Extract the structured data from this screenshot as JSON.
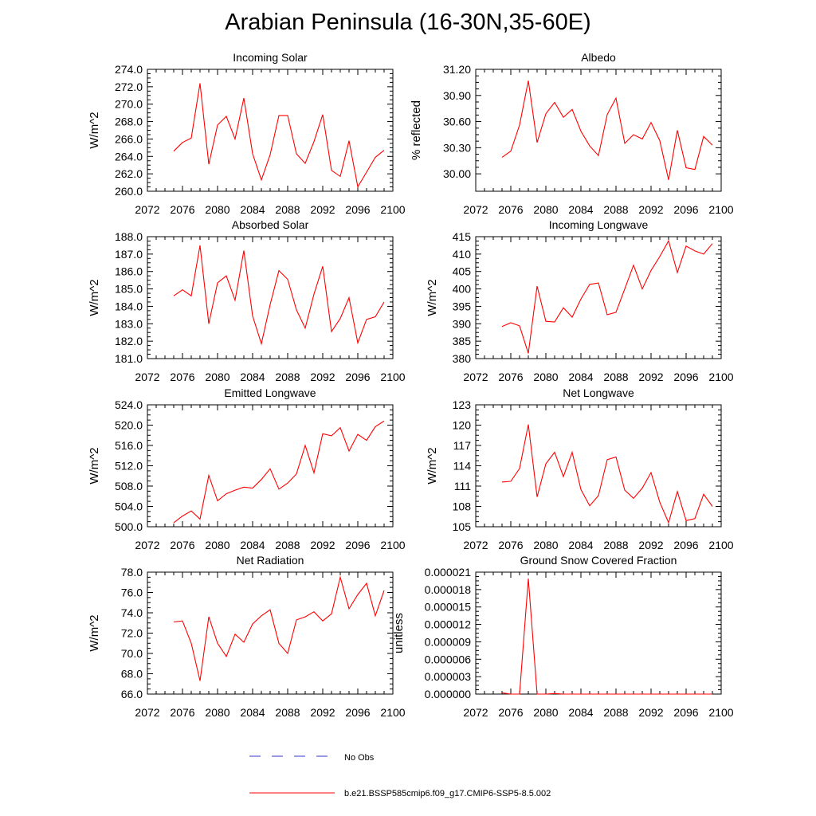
{
  "title": "Arabian Peninsula (16-30N,35-60E)",
  "colors": {
    "model_line": "#ff0000",
    "obs_line": "#3333cc",
    "axes": "#000000"
  },
  "legend": {
    "placement": "bottom-center",
    "obs_label": "No Obs",
    "model_label": "b.e21.BSSP585cmip6.f09_g17.CMIP6-SSP5-8.5.002"
  },
  "chart_data": [
    {
      "type": "line",
      "title": "Incoming Solar",
      "ylabel": "W/m^2",
      "xlim": [
        2072,
        2100
      ],
      "ylim": [
        260,
        274
      ],
      "xticks": [
        "2072",
        "2076",
        "2080",
        "2084",
        "2088",
        "2092",
        "2096",
        "2100"
      ],
      "yticks": [
        "260.0",
        "262.0",
        "264.0",
        "266.0",
        "268.0",
        "270.0",
        "272.0",
        "274.0"
      ],
      "x": [
        2075,
        2076,
        2077,
        2078,
        2079,
        2080,
        2081,
        2082,
        2083,
        2084,
        2085,
        2086,
        2087,
        2088,
        2089,
        2090,
        2091,
        2092,
        2093,
        2094,
        2095,
        2096,
        2097,
        2098,
        2099
      ],
      "series": [
        {
          "values": [
            264.6,
            265.6,
            266.1,
            272.4,
            263.1,
            267.6,
            268.6,
            266.0,
            270.7,
            264.3,
            261.3,
            264.2,
            268.7,
            268.7,
            264.3,
            263.2,
            265.7,
            268.8,
            262.4,
            261.7,
            265.8,
            260.5,
            262.2,
            263.9,
            264.7
          ]
        }
      ]
    },
    {
      "type": "line",
      "title": "Albedo",
      "ylabel": "% reflected",
      "xlim": [
        2072,
        2100
      ],
      "ylim": [
        29.8,
        31.2
      ],
      "xticks": [
        "2072",
        "2076",
        "2080",
        "2084",
        "2088",
        "2092",
        "2096",
        "2100"
      ],
      "yticks": [
        "30.00",
        "30.30",
        "30.60",
        "30.90",
        "31.20"
      ],
      "x": [
        2075,
        2076,
        2077,
        2078,
        2079,
        2080,
        2081,
        2082,
        2083,
        2084,
        2085,
        2086,
        2087,
        2088,
        2089,
        2090,
        2091,
        2092,
        2093,
        2094,
        2095,
        2096,
        2097,
        2098,
        2099
      ],
      "series": [
        {
          "values": [
            30.19,
            30.26,
            30.56,
            31.07,
            30.36,
            30.69,
            30.82,
            30.65,
            30.74,
            30.49,
            30.32,
            30.21,
            30.68,
            30.87,
            30.35,
            30.45,
            30.4,
            30.59,
            30.38,
            29.93,
            30.5,
            30.07,
            30.05,
            30.43,
            30.33
          ]
        }
      ]
    },
    {
      "type": "line",
      "title": "Absorbed Solar",
      "ylabel": "W/m^2",
      "xlim": [
        2072,
        2100
      ],
      "ylim": [
        181,
        188
      ],
      "xticks": [
        "2072",
        "2076",
        "2080",
        "2084",
        "2088",
        "2092",
        "2096",
        "2100"
      ],
      "yticks": [
        "181.0",
        "182.0",
        "183.0",
        "184.0",
        "185.0",
        "186.0",
        "187.0",
        "188.0"
      ],
      "x": [
        2075,
        2076,
        2077,
        2078,
        2079,
        2080,
        2081,
        2082,
        2083,
        2084,
        2085,
        2086,
        2087,
        2088,
        2089,
        2090,
        2091,
        2092,
        2093,
        2094,
        2095,
        2096,
        2097,
        2098,
        2099
      ],
      "series": [
        {
          "values": [
            184.6,
            184.95,
            184.6,
            187.5,
            183.0,
            185.35,
            185.75,
            184.35,
            187.2,
            183.45,
            181.85,
            184.1,
            186.05,
            185.55,
            183.8,
            182.75,
            184.7,
            186.3,
            182.55,
            183.3,
            184.5,
            181.9,
            183.25,
            183.4,
            184.25
          ]
        }
      ]
    },
    {
      "type": "line",
      "title": "Incoming Longwave",
      "ylabel": "W/m^2",
      "xlim": [
        2072,
        2100
      ],
      "ylim": [
        380,
        415
      ],
      "xticks": [
        "2072",
        "2076",
        "2080",
        "2084",
        "2088",
        "2092",
        "2096",
        "2100"
      ],
      "yticks": [
        "380",
        "385",
        "390",
        "395",
        "400",
        "405",
        "410",
        "415"
      ],
      "x": [
        2075,
        2076,
        2077,
        2078,
        2079,
        2080,
        2081,
        2082,
        2083,
        2084,
        2085,
        2086,
        2087,
        2088,
        2089,
        2090,
        2091,
        2092,
        2093,
        2094,
        2095,
        2096,
        2097,
        2098,
        2099
      ],
      "series": [
        {
          "values": [
            389.2,
            390.3,
            389.4,
            381.5,
            400.8,
            390.7,
            390.5,
            394.6,
            391.9,
            397.1,
            401.3,
            401.7,
            392.6,
            393.3,
            400.0,
            406.8,
            400.0,
            405.3,
            409.3,
            413.8,
            404.7,
            412.3,
            410.9,
            410.0,
            413.0
          ]
        }
      ]
    },
    {
      "type": "line",
      "title": "Emitted Longwave",
      "ylabel": "W/m^2",
      "xlim": [
        2072,
        2100
      ],
      "ylim": [
        500,
        524
      ],
      "xticks": [
        "2072",
        "2076",
        "2080",
        "2084",
        "2088",
        "2092",
        "2096",
        "2100"
      ],
      "yticks": [
        "500.0",
        "504.0",
        "508.0",
        "512.0",
        "516.0",
        "520.0",
        "524.0"
      ],
      "x": [
        2075,
        2076,
        2077,
        2078,
        2079,
        2080,
        2081,
        2082,
        2083,
        2084,
        2085,
        2086,
        2087,
        2088,
        2089,
        2090,
        2091,
        2092,
        2093,
        2094,
        2095,
        2096,
        2097,
        2098,
        2099
      ],
      "series": [
        {
          "values": [
            500.8,
            502.1,
            503.1,
            501.5,
            510.1,
            505.1,
            506.5,
            507.2,
            507.8,
            507.6,
            509.3,
            511.4,
            507.4,
            508.6,
            510.4,
            516.0,
            510.6,
            518.3,
            517.9,
            519.5,
            514.9,
            518.2,
            517.0,
            519.7,
            520.8
          ]
        }
      ]
    },
    {
      "type": "line",
      "title": "Net Longwave",
      "ylabel": "W/m^2",
      "xlim": [
        2072,
        2100
      ],
      "ylim": [
        105,
        123
      ],
      "xticks": [
        "2072",
        "2076",
        "2080",
        "2084",
        "2088",
        "2092",
        "2096",
        "2100"
      ],
      "yticks": [
        "105",
        "108",
        "111",
        "114",
        "117",
        "120",
        "123"
      ],
      "x": [
        2075,
        2076,
        2077,
        2078,
        2079,
        2080,
        2081,
        2082,
        2083,
        2084,
        2085,
        2086,
        2087,
        2088,
        2089,
        2090,
        2091,
        2092,
        2093,
        2094,
        2095,
        2096,
        2097,
        2098,
        2099
      ],
      "series": [
        {
          "values": [
            111.6,
            111.7,
            113.6,
            120.1,
            109.4,
            114.3,
            116.0,
            112.4,
            116.0,
            110.5,
            108.1,
            109.6,
            114.9,
            115.3,
            110.4,
            109.2,
            110.7,
            113.0,
            108.6,
            105.6,
            110.2,
            105.9,
            106.2,
            109.8,
            108.0
          ]
        }
      ]
    },
    {
      "type": "line",
      "title": "Net Radiation",
      "ylabel": "W/m^2",
      "xlim": [
        2072,
        2100
      ],
      "ylim": [
        66,
        78
      ],
      "xticks": [
        "2072",
        "2076",
        "2080",
        "2084",
        "2088",
        "2092",
        "2096",
        "2100"
      ],
      "yticks": [
        "66.0",
        "68.0",
        "70.0",
        "72.0",
        "74.0",
        "76.0",
        "78.0"
      ],
      "x": [
        2075,
        2076,
        2077,
        2078,
        2079,
        2080,
        2081,
        2082,
        2083,
        2084,
        2085,
        2086,
        2087,
        2088,
        2089,
        2090,
        2091,
        2092,
        2093,
        2094,
        2095,
        2096,
        2097,
        2098,
        2099
      ],
      "series": [
        {
          "values": [
            73.1,
            73.2,
            71.0,
            67.3,
            73.6,
            71.0,
            69.7,
            71.9,
            71.1,
            72.9,
            73.7,
            74.3,
            71.0,
            70.0,
            73.3,
            73.6,
            74.1,
            73.2,
            73.9,
            77.5,
            74.4,
            75.8,
            76.9,
            73.7,
            76.2
          ]
        }
      ]
    },
    {
      "type": "line",
      "title": "Ground Snow Covered Fraction",
      "ylabel": "unitless",
      "xlim": [
        2072,
        2100
      ],
      "ylim": [
        0,
        2.1e-05
      ],
      "xticks": [
        "2072",
        "2076",
        "2080",
        "2084",
        "2088",
        "2092",
        "2096",
        "2100"
      ],
      "yticks": [
        "0.000000",
        "0.000003",
        "0.000006",
        "0.000009",
        "0.000012",
        "0.000015",
        "0.000018",
        "0.000021"
      ],
      "x": [
        2075,
        2076,
        2077,
        2078,
        2079,
        2080,
        2081,
        2082,
        2083,
        2084,
        2085,
        2086,
        2087,
        2088,
        2089,
        2090,
        2091,
        2092,
        2093,
        2094,
        2095,
        2096,
        2097,
        2098,
        2099
      ],
      "series": [
        {
          "values": [
            2e-07,
            0.0,
            0.0,
            1.99e-05,
            0.0,
            0.0,
            1e-07,
            0.0,
            0.0,
            0.0,
            0.0,
            0.0,
            0.0,
            0.0,
            0.0,
            0.0,
            0.0,
            0.0,
            0.0,
            0.0,
            0.0,
            0.0,
            0.0,
            0.0,
            0.0
          ]
        }
      ]
    }
  ]
}
